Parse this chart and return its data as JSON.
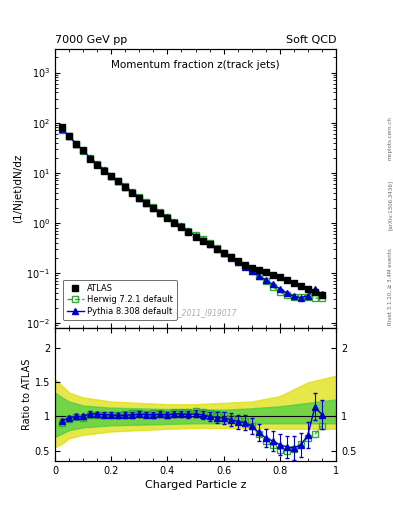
{
  "title_top_left": "7000 GeV pp",
  "title_top_right": "Soft QCD",
  "main_title": "Momentum fraction z(track jets)",
  "xlabel": "Charged Particle z",
  "ylabel_main": "(1/Njet)dN/dz",
  "ylabel_ratio": "Ratio to ATLAS",
  "right_label_line1": "Rivet 3.1.10, ≥ 3.4M events",
  "right_label_line2": "[arXiv:1306.3436]",
  "right_label_line3": "mcplots.cern.ch",
  "watermark": "ATLAS_2011_I919017",
  "atlas_x": [
    0.025,
    0.05,
    0.075,
    0.1,
    0.125,
    0.15,
    0.175,
    0.2,
    0.225,
    0.25,
    0.275,
    0.3,
    0.325,
    0.35,
    0.375,
    0.4,
    0.425,
    0.45,
    0.475,
    0.5,
    0.525,
    0.55,
    0.575,
    0.6,
    0.625,
    0.65,
    0.675,
    0.7,
    0.725,
    0.75,
    0.775,
    0.8,
    0.825,
    0.85,
    0.875,
    0.9,
    0.925,
    0.95
  ],
  "atlas_y": [
    80.0,
    55.0,
    38.0,
    28.0,
    19.0,
    14.5,
    11.0,
    8.5,
    6.8,
    5.2,
    4.0,
    3.1,
    2.45,
    1.95,
    1.55,
    1.25,
    1.0,
    0.82,
    0.66,
    0.53,
    0.44,
    0.37,
    0.305,
    0.25,
    0.21,
    0.175,
    0.145,
    0.125,
    0.115,
    0.105,
    0.092,
    0.082,
    0.072,
    0.063,
    0.055,
    0.048,
    0.042,
    0.037
  ],
  "herwig_x": [
    0.025,
    0.05,
    0.075,
    0.1,
    0.125,
    0.15,
    0.175,
    0.2,
    0.225,
    0.25,
    0.275,
    0.3,
    0.325,
    0.35,
    0.375,
    0.4,
    0.425,
    0.45,
    0.475,
    0.5,
    0.525,
    0.55,
    0.575,
    0.6,
    0.625,
    0.65,
    0.675,
    0.7,
    0.725,
    0.75,
    0.775,
    0.8,
    0.825,
    0.85,
    0.875,
    0.9,
    0.925,
    0.95
  ],
  "herwig_y": [
    72.0,
    53.0,
    37.5,
    27.5,
    19.5,
    14.8,
    11.2,
    8.7,
    6.9,
    5.4,
    4.2,
    3.25,
    2.55,
    2.05,
    1.62,
    1.3,
    1.06,
    0.87,
    0.7,
    0.57,
    0.47,
    0.39,
    0.315,
    0.255,
    0.205,
    0.165,
    0.135,
    0.108,
    0.085,
    0.068,
    0.053,
    0.042,
    0.036,
    0.033,
    0.033,
    0.033,
    0.031,
    0.032
  ],
  "pythia_x": [
    0.025,
    0.05,
    0.075,
    0.1,
    0.125,
    0.15,
    0.175,
    0.2,
    0.225,
    0.25,
    0.275,
    0.3,
    0.325,
    0.35,
    0.375,
    0.4,
    0.425,
    0.45,
    0.475,
    0.5,
    0.525,
    0.55,
    0.575,
    0.6,
    0.625,
    0.65,
    0.675,
    0.7,
    0.725,
    0.75,
    0.775,
    0.8,
    0.825,
    0.85,
    0.875,
    0.9,
    0.925,
    0.95
  ],
  "pythia_y": [
    75.0,
    54.0,
    38.0,
    28.0,
    19.8,
    15.0,
    11.3,
    8.7,
    6.9,
    5.3,
    4.1,
    3.2,
    2.52,
    2.0,
    1.6,
    1.28,
    1.04,
    0.85,
    0.68,
    0.55,
    0.45,
    0.37,
    0.3,
    0.245,
    0.2,
    0.162,
    0.132,
    0.108,
    0.088,
    0.072,
    0.059,
    0.048,
    0.04,
    0.034,
    0.032,
    0.035,
    0.048,
    0.038
  ],
  "atlas_color": "#000000",
  "herwig_color": "#33aa33",
  "pythia_color": "#0000cc",
  "band_inner_color": "#44cc44",
  "band_outer_color": "#dddd00",
  "ylim_main": [
    0.008,
    3000
  ],
  "ylim_ratio": [
    0.35,
    2.3
  ],
  "xlim": [
    0.0,
    1.0
  ],
  "band_outer_x": [
    0.0,
    0.025,
    0.05,
    0.1,
    0.2,
    0.3,
    0.4,
    0.5,
    0.6,
    0.7,
    0.8,
    0.9,
    1.0
  ],
  "band_outer_lo": [
    0.55,
    0.6,
    0.68,
    0.73,
    0.78,
    0.8,
    0.82,
    0.83,
    0.83,
    0.83,
    0.82,
    0.82,
    0.82
  ],
  "band_outer_hi": [
    1.55,
    1.45,
    1.35,
    1.28,
    1.22,
    1.2,
    1.18,
    1.18,
    1.2,
    1.22,
    1.3,
    1.5,
    1.6
  ],
  "band_inner_x": [
    0.0,
    0.025,
    0.05,
    0.1,
    0.2,
    0.3,
    0.4,
    0.5,
    0.6,
    0.7,
    0.8,
    0.9,
    1.0
  ],
  "band_inner_lo": [
    0.7,
    0.75,
    0.8,
    0.84,
    0.87,
    0.88,
    0.89,
    0.9,
    0.9,
    0.9,
    0.9,
    0.9,
    0.9
  ],
  "band_inner_hi": [
    1.35,
    1.28,
    1.22,
    1.16,
    1.13,
    1.12,
    1.11,
    1.1,
    1.1,
    1.12,
    1.15,
    1.2,
    1.25
  ]
}
